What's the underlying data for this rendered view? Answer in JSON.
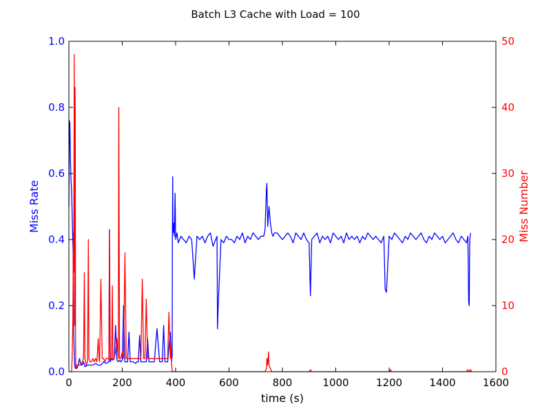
{
  "chart_data": {
    "type": "line",
    "title": "Batch L3 Cache with Load = 100",
    "xlabel": "time (s)",
    "xlim": [
      0,
      1600
    ],
    "x_ticks": [
      0,
      200,
      400,
      600,
      800,
      1000,
      1200,
      1400,
      1600
    ],
    "left_axis": {
      "label": "Miss Rate",
      "color": "#0000ff",
      "ylim": [
        0,
        1.0
      ],
      "ticks": [
        "0.0",
        "0.2",
        "0.4",
        "0.6",
        "0.8",
        "1.0"
      ]
    },
    "right_axis": {
      "label": "Miss Number",
      "color": "#ff0000",
      "ylim": [
        0,
        50
      ],
      "ticks": [
        "0",
        "10",
        "20",
        "30",
        "40",
        "50"
      ]
    },
    "series": [
      {
        "name": "Miss Rate",
        "axis": "left",
        "color": "#0000ff",
        "x": [
          0,
          2,
          4,
          6,
          8,
          10,
          12,
          14,
          16,
          18,
          20,
          22,
          24,
          26,
          28,
          30,
          35,
          40,
          45,
          50,
          55,
          60,
          70,
          80,
          90,
          100,
          110,
          120,
          125,
          130,
          140,
          150,
          152,
          155,
          160,
          165,
          170,
          175,
          180,
          185,
          190,
          195,
          200,
          205,
          210,
          215,
          220,
          225,
          230,
          240,
          250,
          255,
          260,
          265,
          270,
          280,
          290,
          295,
          300,
          310,
          320,
          330,
          340,
          350,
          355,
          360,
          370,
          380,
          385,
          387,
          388,
          389,
          390,
          392,
          395,
          398,
          400,
          405,
          410,
          420,
          430,
          440,
          450,
          460,
          470,
          480,
          490,
          500,
          510,
          520,
          530,
          540,
          550,
          555,
          557,
          560,
          570,
          580,
          590,
          600,
          610,
          620,
          630,
          640,
          650,
          660,
          670,
          680,
          690,
          700,
          710,
          720,
          730,
          735,
          740,
          742,
          745,
          750,
          755,
          760,
          765,
          770,
          780,
          790,
          800,
          810,
          820,
          830,
          840,
          850,
          860,
          870,
          880,
          890,
          900,
          905,
          910,
          920,
          930,
          940,
          950,
          960,
          970,
          980,
          990,
          1000,
          1010,
          1020,
          1030,
          1040,
          1050,
          1060,
          1070,
          1080,
          1090,
          1100,
          1110,
          1120,
          1130,
          1140,
          1150,
          1160,
          1170,
          1180,
          1185,
          1190,
          1200,
          1210,
          1220,
          1230,
          1240,
          1250,
          1260,
          1270,
          1280,
          1290,
          1300,
          1310,
          1320,
          1330,
          1340,
          1350,
          1360,
          1370,
          1380,
          1390,
          1400,
          1410,
          1420,
          1430,
          1440,
          1450,
          1460,
          1470,
          1480,
          1490,
          1495,
          1498,
          1500,
          1502,
          1505
        ],
        "y": [
          0.5,
          0.76,
          0.75,
          0.64,
          0.58,
          0.55,
          0.48,
          0.42,
          0.36,
          0.12,
          0.05,
          0.02,
          0.01,
          0.01,
          0.015,
          0.01,
          0.02,
          0.04,
          0.02,
          0.02,
          0.03,
          0.015,
          0.02,
          0.02,
          0.02,
          0.025,
          0.02,
          0.02,
          0.025,
          0.03,
          0.025,
          0.03,
          0.43,
          0.03,
          0.04,
          0.035,
          0.04,
          0.14,
          0.035,
          0.03,
          0.035,
          0.03,
          0.035,
          0.2,
          0.03,
          0.03,
          0.03,
          0.12,
          0.03,
          0.03,
          0.025,
          0.03,
          0.03,
          0.11,
          0.03,
          0.03,
          0.03,
          0.1,
          0.03,
          0.03,
          0.03,
          0.13,
          0.03,
          0.03,
          0.14,
          0.03,
          0.03,
          0.12,
          0.03,
          0.05,
          0.41,
          0.59,
          0.42,
          0.45,
          0.41,
          0.54,
          0.4,
          0.42,
          0.39,
          0.41,
          0.4,
          0.39,
          0.41,
          0.4,
          0.28,
          0.41,
          0.4,
          0.41,
          0.39,
          0.41,
          0.42,
          0.38,
          0.4,
          0.41,
          0.13,
          0.21,
          0.4,
          0.39,
          0.41,
          0.4,
          0.4,
          0.39,
          0.41,
          0.4,
          0.42,
          0.39,
          0.41,
          0.4,
          0.42,
          0.41,
          0.4,
          0.41,
          0.41,
          0.43,
          0.55,
          0.57,
          0.44,
          0.5,
          0.45,
          0.42,
          0.41,
          0.42,
          0.42,
          0.41,
          0.4,
          0.41,
          0.42,
          0.41,
          0.39,
          0.42,
          0.41,
          0.4,
          0.42,
          0.4,
          0.39,
          0.23,
          0.4,
          0.41,
          0.42,
          0.39,
          0.41,
          0.4,
          0.41,
          0.39,
          0.42,
          0.41,
          0.4,
          0.41,
          0.39,
          0.42,
          0.4,
          0.41,
          0.4,
          0.41,
          0.39,
          0.41,
          0.4,
          0.42,
          0.41,
          0.4,
          0.41,
          0.4,
          0.39,
          0.41,
          0.25,
          0.24,
          0.41,
          0.4,
          0.42,
          0.41,
          0.4,
          0.39,
          0.41,
          0.4,
          0.42,
          0.41,
          0.4,
          0.41,
          0.42,
          0.4,
          0.39,
          0.41,
          0.4,
          0.42,
          0.41,
          0.4,
          0.41,
          0.39,
          0.4,
          0.41,
          0.42,
          0.4,
          0.39,
          0.41,
          0.4,
          0.39,
          0.41,
          0.21,
          0.2,
          0.4,
          0.42
        ]
      },
      {
        "name": "Miss Number",
        "axis": "right",
        "color": "#ff0000",
        "x": [
          0,
          5,
          10,
          12,
          15,
          17,
          18,
          20,
          21,
          22,
          23,
          24,
          25,
          26,
          27,
          28,
          29,
          30,
          35,
          40,
          45,
          50,
          55,
          58,
          60,
          65,
          70,
          73,
          75,
          80,
          85,
          90,
          95,
          100,
          105,
          110,
          113,
          115,
          120,
          125,
          130,
          135,
          140,
          145,
          150,
          152,
          155,
          160,
          163,
          165,
          170,
          175,
          180,
          185,
          187,
          190,
          195,
          200,
          205,
          210,
          215,
          220,
          225,
          230,
          240,
          250,
          260,
          270,
          275,
          280,
          285,
          290,
          295,
          300,
          310,
          320,
          330,
          340,
          350,
          360,
          370,
          375,
          380,
          383,
          385,
          388,
          390,
          400,
          500,
          600,
          700,
          720,
          730,
          735,
          740,
          742,
          745,
          748,
          750,
          760,
          800,
          900,
          905,
          910,
          1000,
          1100,
          1200,
          1205,
          1210,
          1300,
          1400,
          1490,
          1495,
          1500,
          1505,
          1510
        ],
        "y": [
          0,
          0,
          0,
          2,
          8,
          21,
          15,
          48,
          29,
          7,
          43,
          38,
          4,
          1,
          0.5,
          0.5,
          1,
          1,
          1,
          1,
          1,
          1.5,
          2,
          15,
          2,
          1,
          1.5,
          20,
          2,
          1.5,
          1.5,
          2,
          1.5,
          2,
          1.5,
          5,
          2,
          1.5,
          14,
          2,
          2,
          1.5,
          2,
          2,
          2,
          21,
          2,
          2,
          13,
          2,
          2,
          3,
          5,
          2,
          40,
          2,
          2,
          3,
          2,
          18,
          2,
          2,
          2,
          2,
          2,
          2,
          2,
          2,
          14,
          2,
          2,
          11,
          2,
          2,
          2,
          2,
          2,
          2,
          2,
          2,
          2,
          9,
          2,
          4,
          1,
          0,
          0,
          0,
          0,
          0,
          0,
          0,
          0,
          0,
          0.5,
          2,
          1,
          3,
          1,
          0,
          0,
          0,
          0.3,
          0,
          0,
          0,
          0,
          0.3,
          0,
          0,
          0,
          0,
          0.3,
          0,
          0.3,
          0
        ]
      }
    ]
  }
}
